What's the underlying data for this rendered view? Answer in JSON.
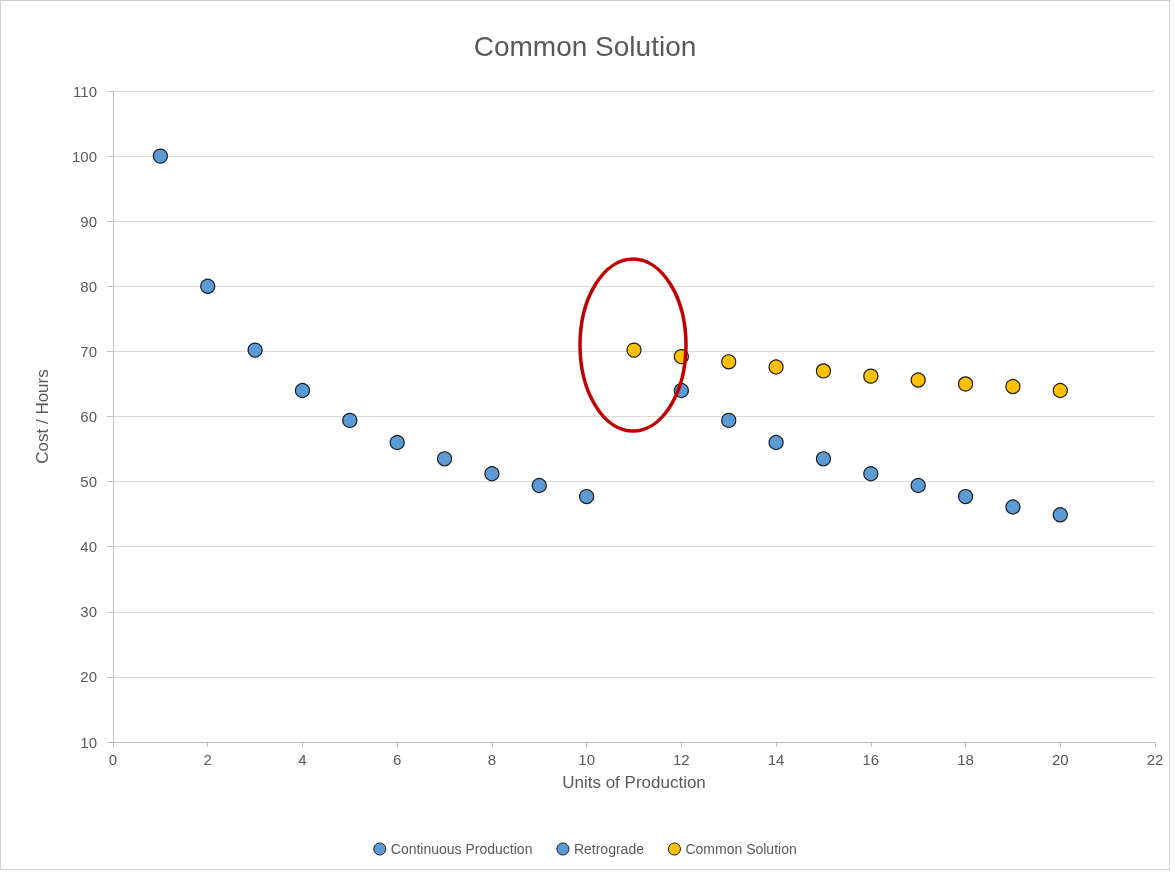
{
  "chart_data": {
    "type": "scatter",
    "title": "Common Solution",
    "xlabel": "Units of Production",
    "ylabel": "Cost / Hours",
    "xlim": [
      0,
      22
    ],
    "xticks": [
      0,
      2,
      4,
      6,
      8,
      10,
      12,
      14,
      16,
      18,
      20,
      22
    ],
    "ylim": [
      10,
      110
    ],
    "yticks": [
      10,
      20,
      30,
      40,
      50,
      60,
      70,
      80,
      90,
      100,
      110
    ],
    "grid": "y",
    "legend": "bottom",
    "marker": "circle",
    "series": [
      {
        "name": "Continuous Production",
        "color": "#5b9bd5",
        "x": [
          1,
          2,
          3,
          4,
          5,
          6,
          7,
          8,
          9,
          10
        ],
        "values": [
          100,
          80,
          70.2,
          64,
          59.4,
          56,
          53.5,
          51.2,
          49.4,
          47.7
        ]
      },
      {
        "name": "Retrograde",
        "color": "#5b9bd5",
        "x": [
          12,
          13,
          14,
          15,
          16,
          17,
          18,
          19,
          20
        ],
        "values": [
          64,
          59.4,
          56,
          53.5,
          51.2,
          49.4,
          47.7,
          46.1,
          44.9
        ]
      },
      {
        "name": "Common Solution",
        "color": "#ffc000",
        "x": [
          11,
          12,
          13,
          14,
          15,
          16,
          17,
          18,
          19,
          20
        ],
        "values": [
          70.2,
          69.2,
          68.4,
          67.6,
          67,
          66.2,
          65.6,
          65,
          64.6,
          64
        ]
      }
    ]
  }
}
